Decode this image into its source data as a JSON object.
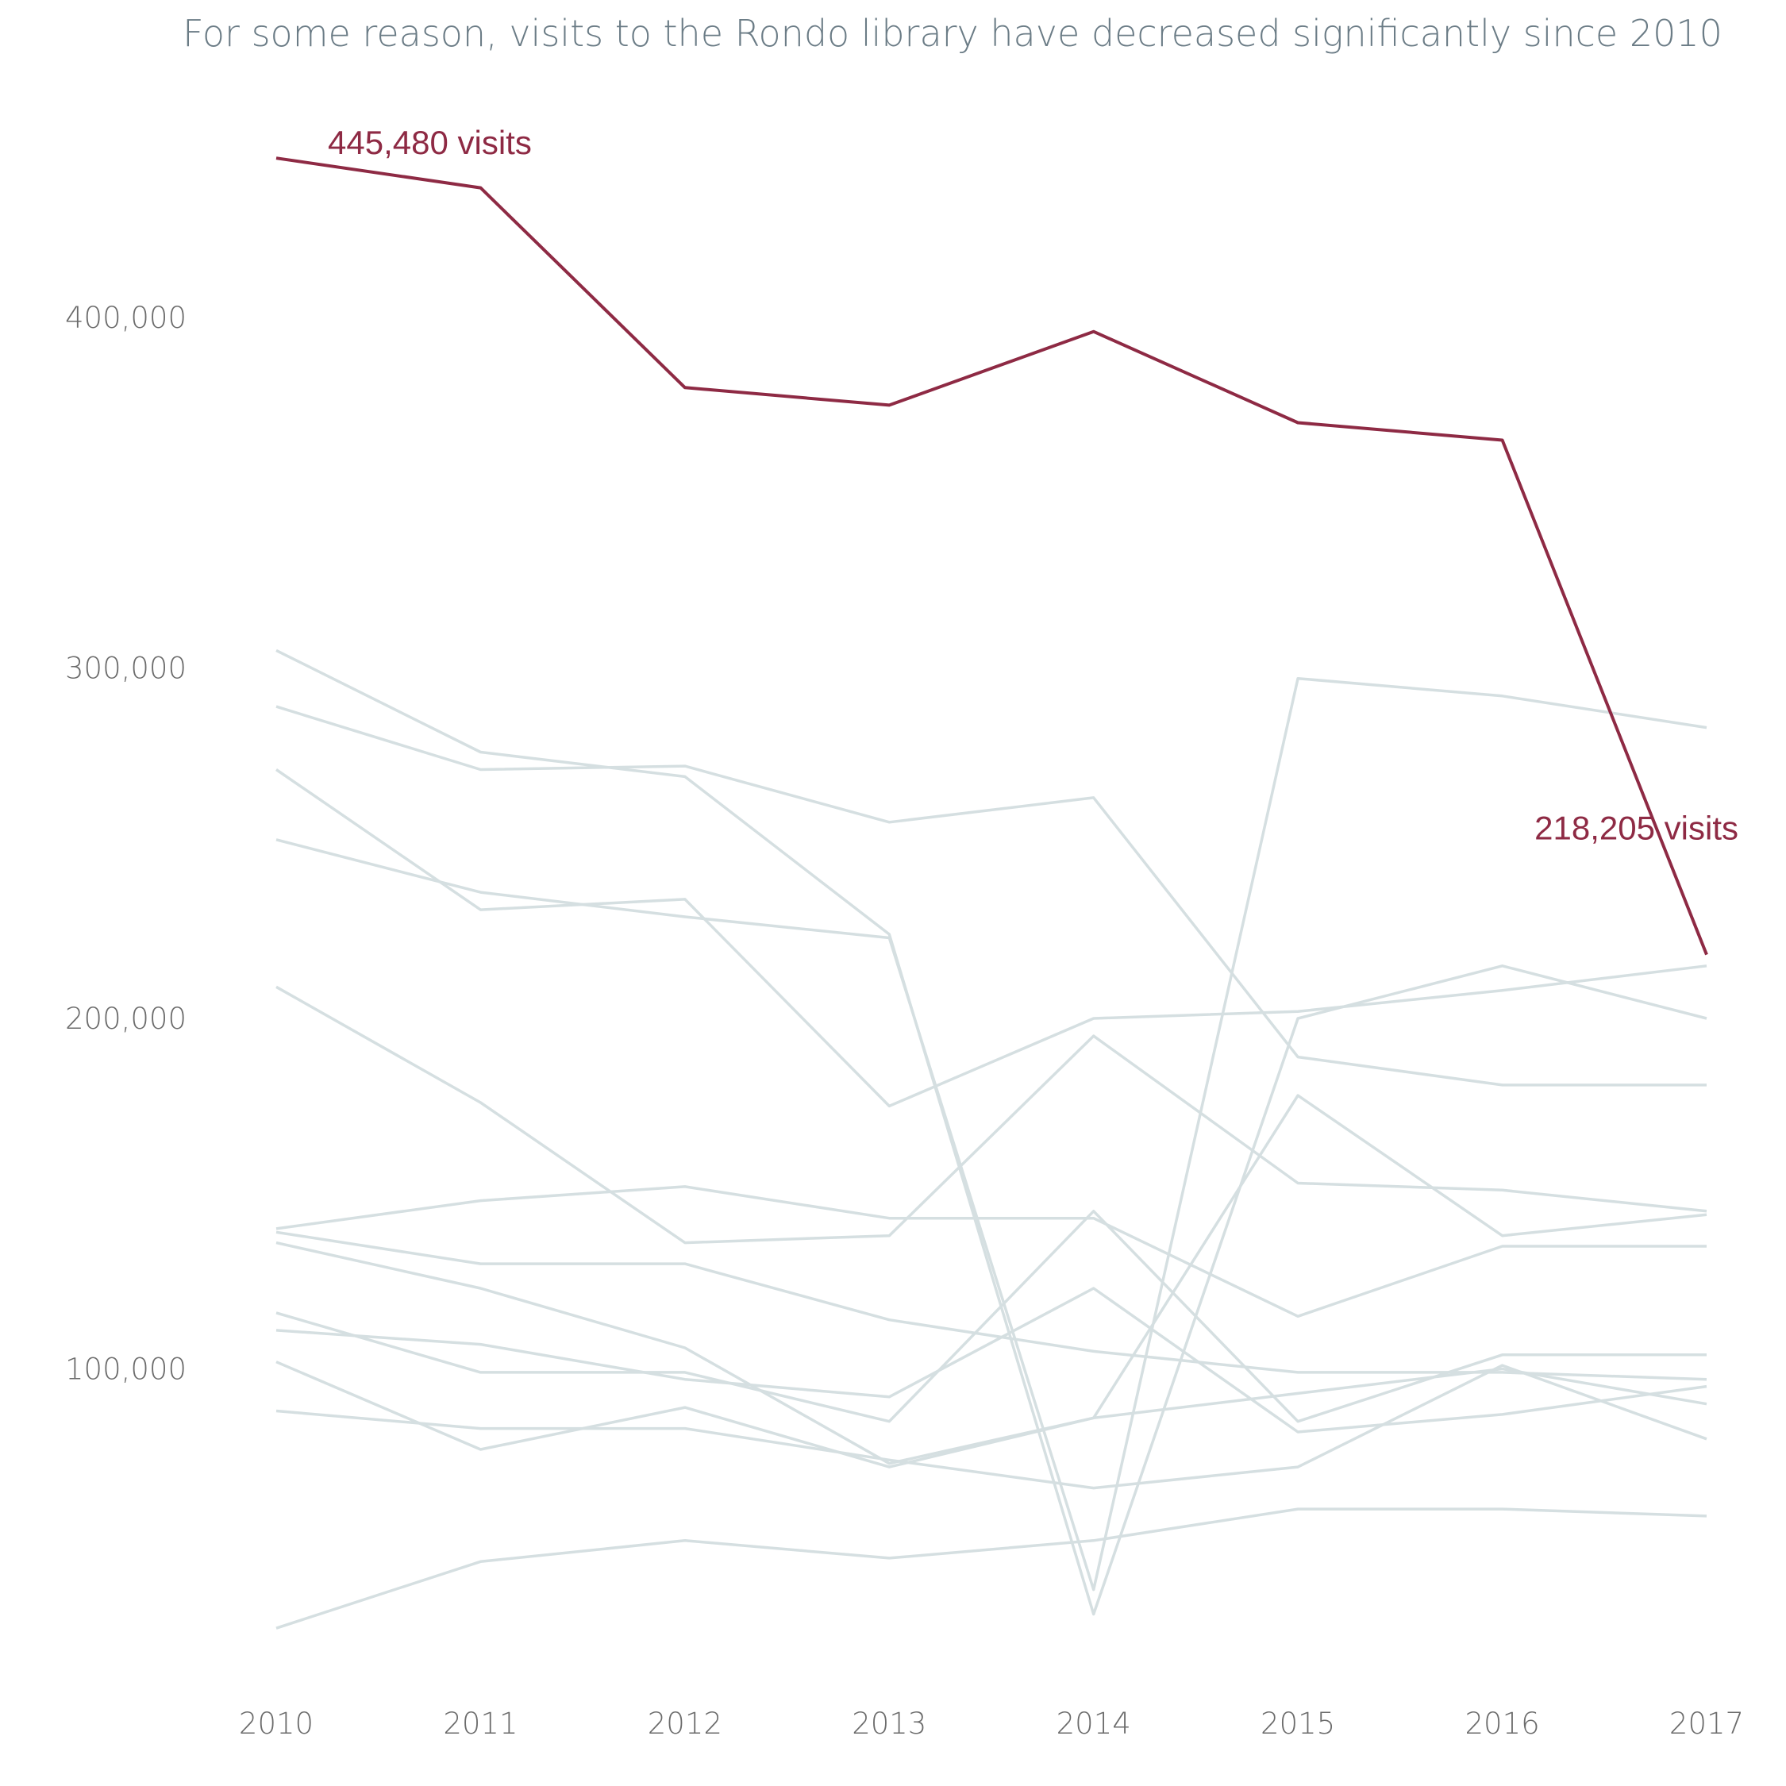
{
  "chart_data": {
    "type": "line",
    "title": "For some reason, visits to the Rondo library have decreased significantly since 2010",
    "x": [
      "2010",
      "2011",
      "2012",
      "2013",
      "2014",
      "2015",
      "2016",
      "2017"
    ],
    "ylim": [
      0,
      450000
    ],
    "y_ticks": [
      100000,
      200000,
      300000,
      400000
    ],
    "y_tick_labels": [
      "100,000",
      "200,000",
      "300,000",
      "400,000"
    ],
    "grid": false,
    "legend": "none",
    "highlight_color": "#8e2a44",
    "background_series_color": "#d5dfe1",
    "highlight": {
      "values": [
        445480,
        437000,
        380000,
        375000,
        396000,
        370000,
        365000,
        218205
      ]
    },
    "annotations": [
      {
        "text": "445,480 visits",
        "x": "2010",
        "y": 445480
      },
      {
        "text": "218,205 visits",
        "x": "2017",
        "y": 218205
      }
    ],
    "series": [
      {
        "values": [
          305000,
          276000,
          269000,
          224000,
          30000,
          200000,
          215000,
          200000
        ]
      },
      {
        "values": [
          289000,
          271000,
          272000,
          256000,
          263000,
          189000,
          181000,
          181000
        ]
      },
      {
        "values": [
          271000,
          231000,
          234000,
          175000,
          200000,
          202000,
          208000,
          215000
        ]
      },
      {
        "values": [
          251000,
          236000,
          229000,
          223000,
          37000,
          297000,
          292000,
          283000
        ]
      },
      {
        "values": [
          209000,
          176000,
          136000,
          138000,
          195000,
          153000,
          151000,
          145000
        ]
      },
      {
        "values": [
          140000,
          148000,
          152000,
          143000,
          143000,
          115000,
          135000,
          135000
        ]
      },
      {
        "values": [
          139000,
          130000,
          130000,
          114000,
          105000,
          99000,
          99000,
          97000
        ]
      },
      {
        "values": [
          136000,
          123000,
          106000,
          73000,
          86000,
          178000,
          138000,
          144000
        ]
      },
      {
        "values": [
          116000,
          99000,
          99000,
          85000,
          145000,
          85000,
          104000,
          104000
        ]
      },
      {
        "values": [
          111000,
          107000,
          97000,
          92000,
          123000,
          82000,
          87000,
          95000
        ]
      },
      {
        "values": [
          102000,
          77000,
          89000,
          72000,
          86000,
          93000,
          100000,
          90000
        ]
      },
      {
        "values": [
          88000,
          83000,
          83000,
          74000,
          66000,
          72000,
          101000,
          80000
        ]
      },
      {
        "values": [
          26000,
          45000,
          51000,
          46000,
          51000,
          60000,
          60000,
          58000
        ]
      }
    ]
  }
}
